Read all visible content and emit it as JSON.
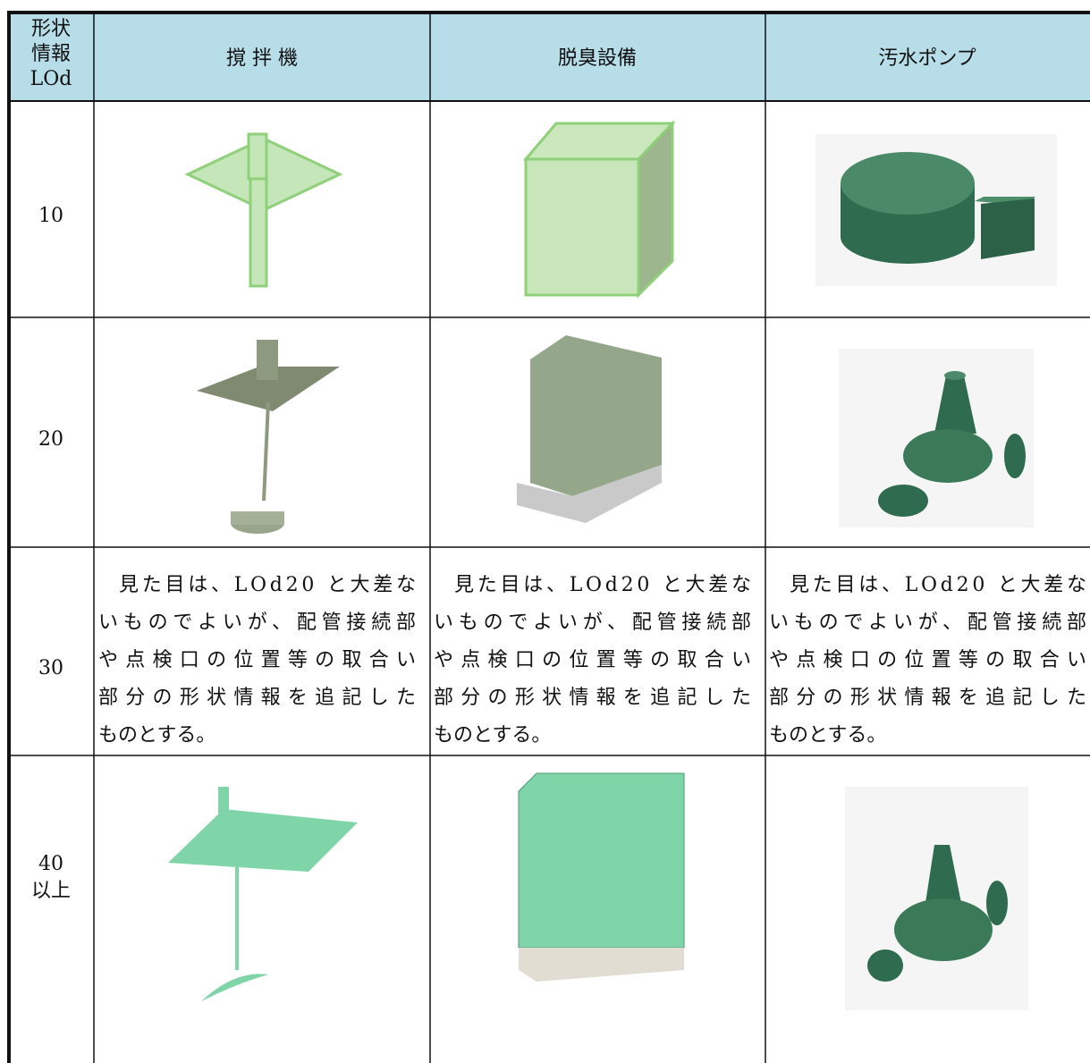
{
  "table": {
    "header": {
      "corner": [
        "形状",
        "情報",
        "LOd"
      ],
      "columns": [
        "撹 拌 機",
        "脱臭設備",
        "汚水ポンプ"
      ]
    },
    "rows": [
      {
        "label": [
          "10"
        ]
      },
      {
        "label": [
          "20"
        ]
      },
      {
        "label": [
          "30"
        ],
        "cells": [
          [
            "見た目は、LOd20 と大差な",
            "いものでよいが、配管接続部",
            "や点検口の位置等の取合い",
            "部分の形状情報を追記した",
            "ものとする。"
          ],
          [
            "見た目は、LOd20 と大差な",
            "いものでよいが、配管接続部",
            "や点検口の位置等の取合い",
            "部分の形状情報を追記した",
            "ものとする。"
          ],
          [
            "見た目は、LOd20 と大差な",
            "いものでよいが、配管接続部",
            "や点検口の位置等の取合い",
            "部分の形状情報を追記した",
            "ものとする。"
          ]
        ]
      },
      {
        "label": [
          "40",
          "以上"
        ]
      }
    ]
  }
}
